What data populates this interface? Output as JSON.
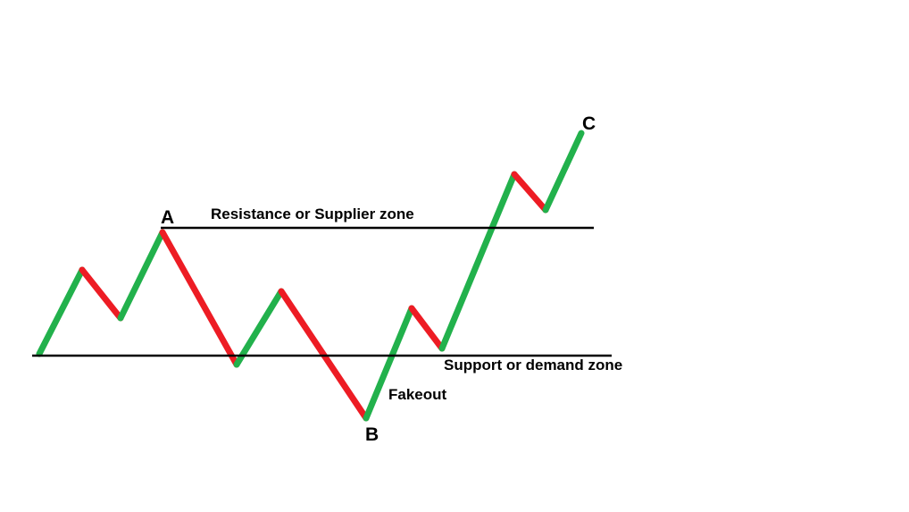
{
  "diagram": {
    "resistance_label": "Resistance or Supplier zone",
    "support_label": "Support or demand zone",
    "fakeout_label": "Fakeout",
    "points": {
      "a": "A",
      "b": "B",
      "c": "C"
    },
    "colors": {
      "up_move": "#22b14c",
      "down_move": "#ed1c24",
      "zone_line": "#000000"
    },
    "segments": [
      {
        "direction": "up"
      },
      {
        "direction": "down"
      },
      {
        "direction": "up"
      },
      {
        "direction": "down"
      },
      {
        "direction": "up"
      },
      {
        "direction": "down"
      },
      {
        "direction": "up"
      },
      {
        "direction": "down"
      },
      {
        "direction": "up"
      },
      {
        "direction": "down"
      },
      {
        "direction": "up"
      }
    ]
  }
}
